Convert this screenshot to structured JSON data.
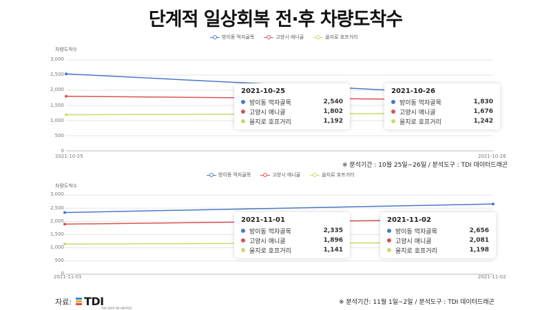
{
  "title": "단계적 일상회복 전·후 차량도착수",
  "colors": {
    "s1": "#4a78c6",
    "s2": "#d9534f",
    "s3": "#c5dd6a",
    "grid": "#e6e6e6"
  },
  "charts": [
    {
      "ylabel": "차량도착수",
      "yticks": [
        "3,000",
        "2,500",
        "2,000",
        "1,500",
        "1,000",
        "500",
        "0"
      ],
      "xticks": [
        "2021-10-25",
        "2021-10-26"
      ],
      "legend": [
        "방이동 먹자골목",
        "고양시 애니골",
        "을지로 호프거리"
      ],
      "tooltips": [
        {
          "date": "2021-10-25",
          "rows": [
            {
              "name": "방이동 먹자골목",
              "value": "2,540"
            },
            {
              "name": "고양시 애니골",
              "value": "1,802"
            },
            {
              "name": "을지로 호프거리",
              "value": "1,192"
            }
          ]
        },
        {
          "date": "2021-10-26",
          "rows": [
            {
              "name": "방이동 먹자골목",
              "value": "1,830"
            },
            {
              "name": "고양시 애니골",
              "value": "1,676"
            },
            {
              "name": "을지로 호프거리",
              "value": "1,242"
            }
          ]
        }
      ],
      "note": "※ 분석기간 : 10월 25일~26일 / 분석도구 : TDI 데이터드래곤"
    },
    {
      "ylabel": "차량도착수",
      "yticks": [
        "3,000",
        "2,500",
        "2,000",
        "1,500",
        "1,000",
        "500",
        "0"
      ],
      "xticks": [
        "2021-11-01",
        "2021-11-02"
      ],
      "legend": [
        "방이동 먹자골목",
        "고양시 애니골",
        "을지로 호프거리"
      ],
      "tooltips": [
        {
          "date": "2021-11-01",
          "rows": [
            {
              "name": "방이동 먹자골목",
              "value": "2,335"
            },
            {
              "name": "고양시 애니골",
              "value": "1,896"
            },
            {
              "name": "을지로 호프거리",
              "value": "1,141"
            }
          ]
        },
        {
          "date": "2021-11-02",
          "rows": [
            {
              "name": "방이동 먹자골목",
              "value": "2,656"
            },
            {
              "name": "고양시 애니골",
              "value": "2,081"
            },
            {
              "name": "을지로 호프거리",
              "value": "1,198"
            }
          ]
        }
      ],
      "note": "※ 분석기간: 11월 1일~2일 / 분석도구 : TDI 데이터드래곤"
    }
  ],
  "source": {
    "label": "자료:",
    "logo": "TDI",
    "logo_sub": "THE DATA INCUBATOR",
    "logo_colors": [
      "#2b8fd6",
      "#f2a33a",
      "#e74c3c"
    ]
  },
  "chart_data": [
    {
      "type": "line",
      "x": [
        "2021-10-25",
        "2021-10-26"
      ],
      "series": [
        {
          "name": "방이동 먹자골목",
          "values": [
            2540,
            1830
          ]
        },
        {
          "name": "고양시 애니골",
          "values": [
            1802,
            1676
          ]
        },
        {
          "name": "을지로 호프거리",
          "values": [
            1192,
            1242
          ]
        }
      ],
      "ylabel": "차량도착수",
      "ylim": [
        0,
        3000
      ],
      "grid": true,
      "legend": "top-center"
    },
    {
      "type": "line",
      "x": [
        "2021-11-01",
        "2021-11-02"
      ],
      "series": [
        {
          "name": "방이동 먹자골목",
          "values": [
            2335,
            2656
          ]
        },
        {
          "name": "고양시 애니골",
          "values": [
            1896,
            2081
          ]
        },
        {
          "name": "을지로 호프거리",
          "values": [
            1141,
            1198
          ]
        }
      ],
      "ylabel": "차량도착수",
      "ylim": [
        0,
        3000
      ],
      "grid": true,
      "legend": "top-center"
    }
  ]
}
